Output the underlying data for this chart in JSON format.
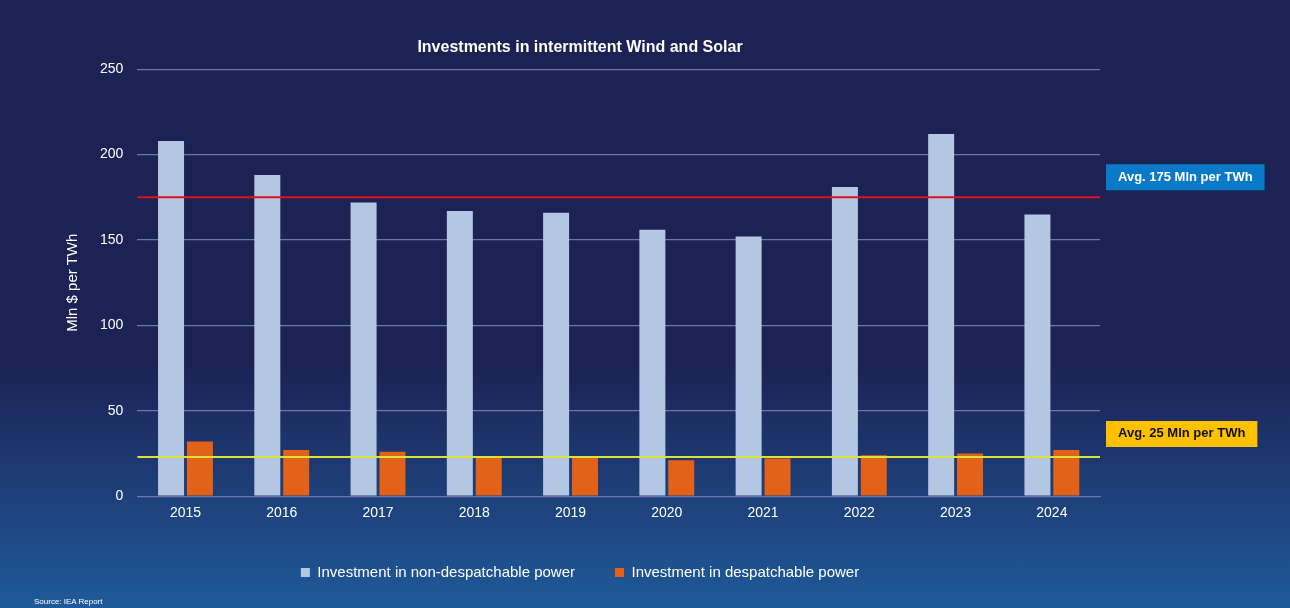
{
  "chart_data": {
    "type": "bar",
    "title": "Investments in intermittent Wind and Solar",
    "ylabel": "Mln $ per TWh",
    "categories": [
      "2015",
      "2016",
      "2017",
      "2018",
      "2019",
      "2020",
      "2021",
      "2022",
      "2023",
      "2024"
    ],
    "series": [
      {
        "name": "Investment in non-despatchable power",
        "color": "#b4c7e2",
        "values": [
          208,
          188,
          172,
          167,
          166,
          156,
          152,
          181,
          212,
          165
        ]
      },
      {
        "name": "Investment in despatchable power",
        "color": "#e2621a",
        "values": [
          32,
          27,
          26,
          23,
          23,
          21,
          22,
          24,
          25,
          27
        ]
      }
    ],
    "ylim": [
      0,
      250
    ],
    "yticks": [
      0,
      50,
      100,
      150,
      200,
      250
    ],
    "grid": "y",
    "legend": "bottom",
    "ref_lines": [
      {
        "axis": "y",
        "value": 175,
        "label": "Avg. 175 Mln per TWh",
        "color": "#e0101e"
      },
      {
        "axis": "y",
        "value": 23,
        "label": "Avg. 25 Mln per TWh",
        "color": "#d8e43c"
      }
    ],
    "annotations": [
      "Source: IEA Report"
    ]
  }
}
